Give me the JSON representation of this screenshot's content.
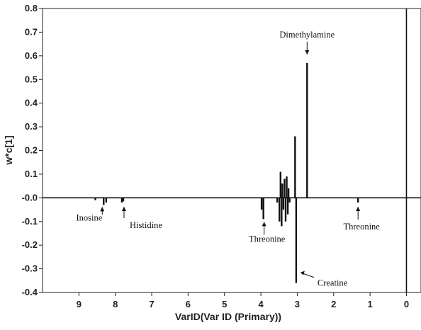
{
  "chart_data": {
    "type": "bar",
    "xlabel": "VarID(Var ID (Primary))",
    "ylabel": "w*c[1]",
    "xlim": [
      10.0,
      -0.4
    ],
    "ylim": [
      -0.4,
      0.8
    ],
    "x_reversed": true,
    "grid": false,
    "x_ticks": [
      9,
      8,
      7,
      6,
      5,
      4,
      3,
      2,
      1,
      0
    ],
    "y_ticks": [
      {
        "value": 0.8,
        "label": "0.8"
      },
      {
        "value": 0.7,
        "label": "0.7"
      },
      {
        "value": 0.6,
        "label": "0.6"
      },
      {
        "value": 0.5,
        "label": "0.5"
      },
      {
        "value": 0.4,
        "label": "0.4"
      },
      {
        "value": 0.3,
        "label": "0.3"
      },
      {
        "value": 0.2,
        "label": "0.2"
      },
      {
        "value": 0.1,
        "label": "0.1"
      },
      {
        "value": 0.0,
        "label": "-0.0"
      },
      {
        "value": -0.1,
        "label": "-0.1"
      },
      {
        "value": -0.2,
        "label": "-0.2"
      },
      {
        "value": -0.3,
        "label": "-0.3"
      },
      {
        "value": -0.4,
        "label": "-0.4"
      }
    ],
    "series": [
      {
        "x": [
          8.55,
          8.32,
          8.25,
          7.82,
          7.78,
          3.98,
          3.93,
          3.55,
          3.49,
          3.46,
          3.43,
          3.41,
          3.38,
          3.35,
          3.32,
          3.29,
          3.26,
          3.24,
          3.21,
          3.06,
          3.03,
          2.73,
          1.33
        ],
        "values": [
          -0.01,
          -0.03,
          -0.02,
          -0.02,
          -0.015,
          -0.05,
          -0.09,
          -0.02,
          -0.1,
          0.11,
          -0.12,
          0.06,
          -0.05,
          0.08,
          -0.1,
          0.09,
          -0.07,
          0.04,
          -0.02,
          0.26,
          -0.36,
          0.57,
          -0.02
        ]
      }
    ],
    "vline_x": 0,
    "annotations": [
      {
        "text": "Dimethylamine",
        "x": 2.73,
        "y": 0.57
      },
      {
        "text": "Inosine",
        "x": 8.32,
        "y": -0.03
      },
      {
        "text": "Histidine",
        "x": 7.8,
        "y": -0.02
      },
      {
        "text": "Threonine",
        "x": 3.93,
        "y": -0.09
      },
      {
        "text": "Creatine",
        "x": 3.03,
        "y": -0.36
      },
      {
        "text": "Threonine",
        "x": 1.33,
        "y": -0.02
      }
    ]
  }
}
